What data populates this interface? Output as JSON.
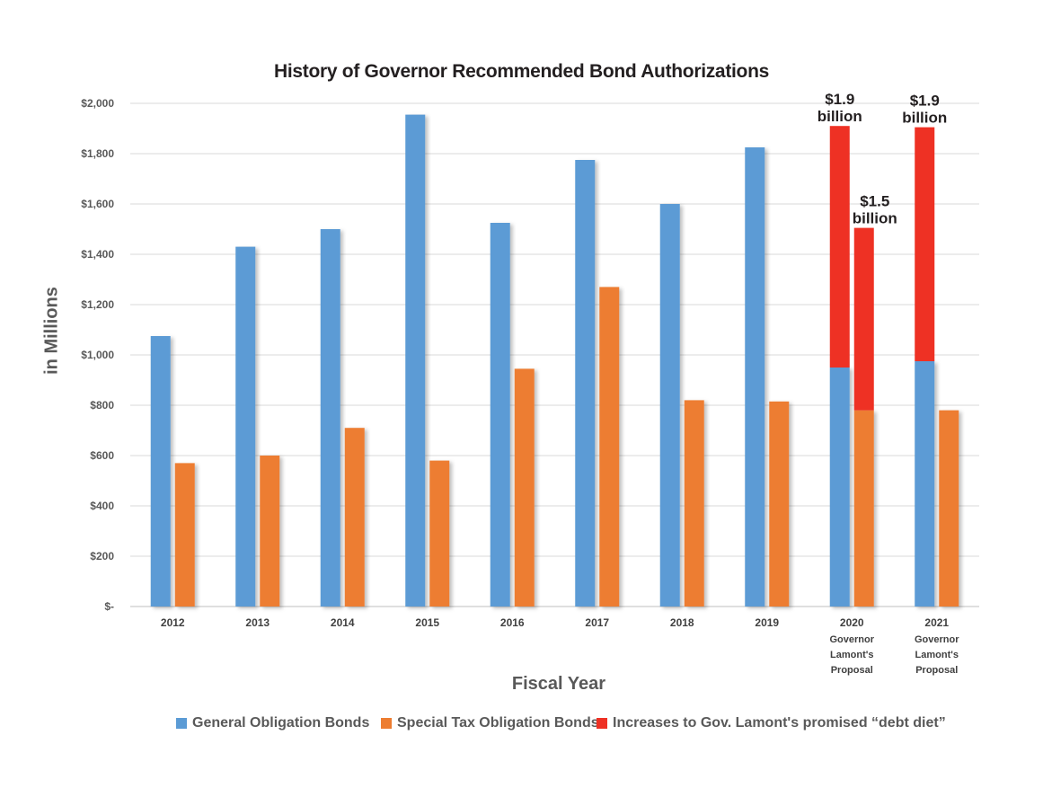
{
  "chart_data": {
    "type": "bar",
    "title": "History of Governor Recommended Bond Authorizations",
    "xlabel": "Fiscal Year",
    "ylabel": "in Millions",
    "ylim": [
      0,
      2000
    ],
    "yticks": [
      "$-",
      "$200",
      "$400",
      "$600",
      "$800",
      "$1,000",
      "$1,200",
      "$1,400",
      "$1,600",
      "$1,800",
      "$2,000"
    ],
    "grid": true,
    "legend_position": "bottom",
    "categories": [
      "2012",
      "2013",
      "2014",
      "2015",
      "2016",
      "2017",
      "2018",
      "2019",
      "2020",
      "2021"
    ],
    "category_sublabels": [
      "",
      "",
      "",
      "",
      "",
      "",
      "",
      "",
      "Governor Lamont's Proposal",
      "Governor Lamont's Proposal"
    ],
    "series": [
      {
        "name": "General Obligation Bonds",
        "color": "#5b9bd5",
        "values": [
          1075,
          1430,
          1500,
          1955,
          1525,
          1775,
          1600,
          1825,
          950,
          975
        ]
      },
      {
        "name": "Special Tax Obligation Bonds",
        "color": "#ed7d31",
        "values": [
          570,
          600,
          710,
          580,
          945,
          1270,
          820,
          815,
          780,
          780
        ]
      },
      {
        "name": "Increases to Gov. Lamont's promised “debt diet”",
        "color": "#ee3124",
        "stacked_on": [
          {
            "category": "2020",
            "base_series": "General Obligation Bonds",
            "value": 960
          },
          {
            "category": "2020",
            "base_series": "Special Tax Obligation Bonds",
            "value": 725
          },
          {
            "category": "2021",
            "base_series": "General Obligation Bonds",
            "value": 930
          }
        ]
      }
    ],
    "annotations": [
      {
        "category": "2020",
        "over_series": "General Obligation Bonds",
        "text": "$1.9 billion"
      },
      {
        "category": "2020",
        "over_series": "Special Tax Obligation Bonds",
        "text": "$1.5 billion"
      },
      {
        "category": "2021",
        "over_series": "General Obligation Bonds",
        "text": "$1.9 billion"
      }
    ]
  }
}
